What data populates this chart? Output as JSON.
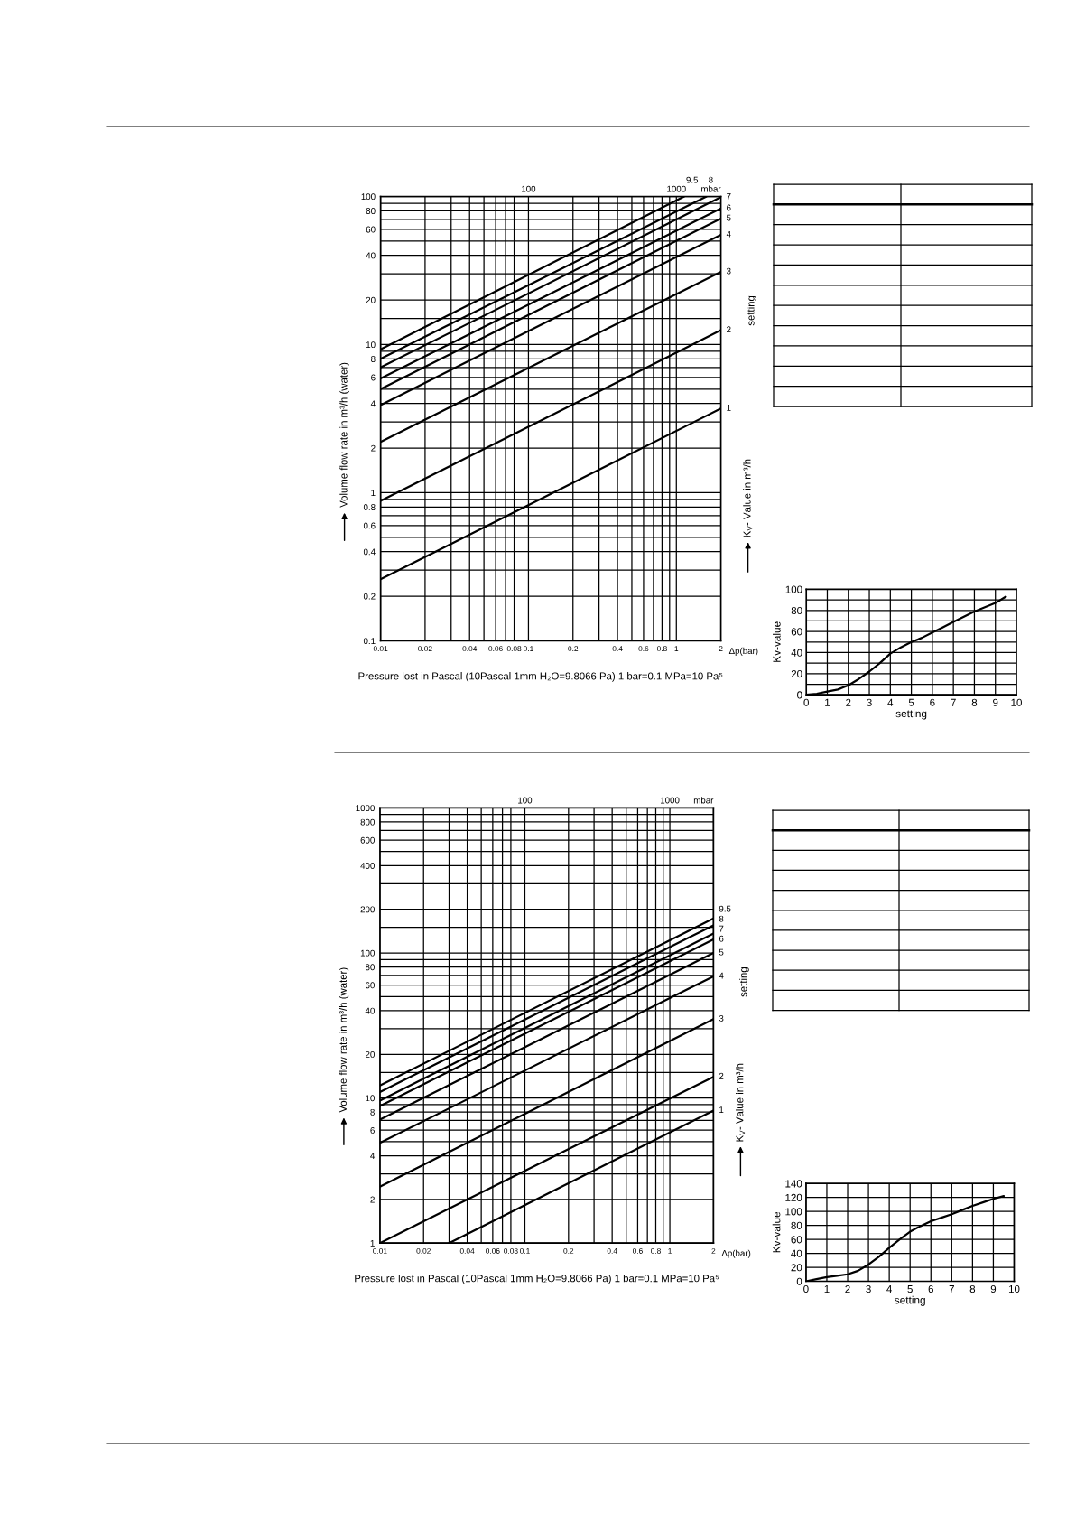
{
  "chart_data": [
    {
      "type": "line",
      "xlabel": "Pressure lost in Pascal (10Pascal 1mm H₂O=9.8066 Pa) 1 bar=0.1 MPa=10 Pa⁵",
      "ylabel": "Volume flow rate in m³/h (water)",
      "annotations": [
        "Δp(bar)",
        "setting",
        "K$_{V}$- Value in m³/h",
        "100",
        "1000",
        "mbar"
      ],
      "log": "xy",
      "xlim": [
        0.01,
        2
      ],
      "ylim": [
        0.1,
        100
      ],
      "xticks": [
        0.01,
        0.02,
        {
          "value": 0.03,
          "label": null
        },
        0.04,
        {
          "value": 0.05,
          "label": null
        },
        0.06,
        {
          "value": 0.07,
          "label": null
        },
        0.08,
        0.1,
        0.2,
        {
          "value": 0.3,
          "label": null
        },
        0.4,
        {
          "value": 0.5,
          "label": null
        },
        0.6,
        {
          "value": 0.7,
          "label": null
        },
        0.8,
        {
          "value": 0.9,
          "label": null
        },
        1,
        2
      ],
      "yticks": [
        0.1,
        0.2,
        {
          "value": 0.3,
          "label": null
        },
        0.4,
        {
          "value": 0.5,
          "label": null
        },
        0.6,
        {
          "value": 0.7,
          "label": null
        },
        0.8,
        {
          "value": 0.9,
          "label": null
        },
        1,
        2,
        {
          "value": 3,
          "label": null
        },
        4,
        {
          "value": 5,
          "label": null
        },
        6,
        {
          "value": 7,
          "label": null
        },
        8,
        {
          "value": 9,
          "label": null
        },
        10,
        {
          "value": 15,
          "label": null
        },
        20,
        {
          "value": 30,
          "label": null
        },
        40,
        {
          "value": 50,
          "label": null
        },
        60,
        {
          "value": 70,
          "label": null
        },
        80,
        {
          "value": 90,
          "label": null
        },
        100
      ],
      "grid": true,
      "series": [
        {
          "name": "9.5",
          "color": "#000000",
          "x": [
            0.01,
            1.13
          ],
          "values": [
            9.3,
            100
          ]
        },
        {
          "name": "8",
          "color": "#000000",
          "x": [
            0.01,
            1.6
          ],
          "values": [
            8.0,
            100
          ]
        },
        {
          "name": "7",
          "color": "#000000",
          "x": [
            0.01,
            2
          ],
          "values": [
            7.0,
            99
          ]
        },
        {
          "name": "6",
          "color": "#000000",
          "x": [
            0.01,
            2
          ],
          "values": [
            5.9,
            83
          ]
        },
        {
          "name": "5",
          "color": "#000000",
          "x": [
            0.01,
            2
          ],
          "values": [
            5.0,
            71
          ]
        },
        {
          "name": "4",
          "color": "#000000",
          "x": [
            0.01,
            2
          ],
          "values": [
            3.9,
            55
          ]
        },
        {
          "name": "3",
          "color": "#000000",
          "x": [
            0.01,
            2
          ],
          "values": [
            2.2,
            31
          ]
        },
        {
          "name": "2",
          "color": "#000000",
          "x": [
            0.01,
            2
          ],
          "values": [
            0.88,
            12.5
          ]
        },
        {
          "name": "1",
          "color": "#000000",
          "x": [
            0.01,
            2
          ],
          "values": [
            0.26,
            3.7
          ]
        }
      ]
    },
    {
      "type": "line",
      "xlabel": "setting",
      "ylabel": "Kv-value",
      "xlim": [
        0,
        10
      ],
      "ylim": [
        0,
        100
      ],
      "xticks": [
        0,
        1,
        2,
        3,
        4,
        5,
        6,
        7,
        8,
        9,
        10
      ],
      "yticks": [
        0,
        {
          "value": 10,
          "label": null
        },
        20,
        {
          "value": 30,
          "label": null
        },
        40,
        {
          "value": 50,
          "label": null
        },
        60,
        {
          "value": 70,
          "label": null
        },
        80,
        {
          "value": 90,
          "label": null
        },
        100
      ],
      "grid": true,
      "series": [
        {
          "color": "#000000",
          "x": [
            0,
            0.5,
            1,
            1.5,
            2,
            2.5,
            3,
            3.5,
            4,
            4.5,
            5,
            5.5,
            6,
            6.5,
            7,
            7.5,
            8,
            8.5,
            9,
            9.5
          ],
          "values": [
            0,
            1,
            3,
            5,
            9,
            15,
            22,
            30,
            39,
            45,
            50,
            54,
            59,
            64,
            69,
            74,
            79,
            83,
            87,
            93
          ]
        }
      ]
    },
    {
      "type": "line",
      "xlabel": "Pressure lost in Pascal (10Pascal 1mm H₂O=9.8066 Pa) 1 bar=0.1 MPa=10 Pa⁵",
      "ylabel": "Volume flow rate in m³/h (water)",
      "annotations": [
        "Δp(bar)",
        "setting",
        "K$_{V}$- Value in m³/h",
        "100",
        "1000",
        "mbar"
      ],
      "log": "xy",
      "xlim": [
        0.01,
        2
      ],
      "ylim": [
        1,
        1000
      ],
      "xticks": [
        0.01,
        0.02,
        {
          "value": 0.03,
          "label": null
        },
        0.04,
        {
          "value": 0.05,
          "label": null
        },
        0.06,
        {
          "value": 0.07,
          "label": null
        },
        0.08,
        0.1,
        0.2,
        {
          "value": 0.3,
          "label": null
        },
        0.4,
        {
          "value": 0.5,
          "label": null
        },
        0.6,
        {
          "value": 0.7,
          "label": null
        },
        0.8,
        {
          "value": 0.9,
          "label": null
        },
        1,
        2
      ],
      "yticks": [
        1,
        2,
        {
          "value": 3,
          "label": null
        },
        4,
        {
          "value": 5,
          "label": null
        },
        6,
        {
          "value": 7,
          "label": null
        },
        8,
        {
          "value": 9,
          "label": null
        },
        10,
        {
          "value": 15,
          "label": null
        },
        20,
        {
          "value": 30,
          "label": null
        },
        40,
        {
          "value": 50,
          "label": null
        },
        60,
        {
          "value": 70,
          "label": null
        },
        80,
        {
          "value": 90,
          "label": null
        },
        100,
        {
          "value": 150,
          "label": null
        },
        200,
        {
          "value": 300,
          "label": null
        },
        400,
        {
          "value": 500,
          "label": null
        },
        600,
        {
          "value": 700,
          "label": null
        },
        800,
        {
          "value": 900,
          "label": null
        },
        1000
      ],
      "grid": true,
      "series": [
        {
          "name": "9.5",
          "color": "#000000",
          "x": [
            0.01,
            2
          ],
          "values": [
            12.2,
            173
          ]
        },
        {
          "name": "8",
          "color": "#000000",
          "x": [
            0.01,
            2
          ],
          "values": [
            11.0,
            155
          ]
        },
        {
          "name": "7",
          "color": "#000000",
          "x": [
            0.01,
            2
          ],
          "values": [
            9.6,
            136
          ]
        },
        {
          "name": "6",
          "color": "#000000",
          "x": [
            0.01,
            2
          ],
          "values": [
            8.8,
            124
          ]
        },
        {
          "name": "5",
          "color": "#000000",
          "x": [
            0.01,
            2
          ],
          "values": [
            7.1,
            100
          ]
        },
        {
          "name": "4",
          "color": "#000000",
          "x": [
            0.01,
            2
          ],
          "values": [
            4.9,
            69
          ]
        },
        {
          "name": "3",
          "color": "#000000",
          "x": [
            0.01,
            2
          ],
          "values": [
            2.45,
            35
          ]
        },
        {
          "name": "2",
          "color": "#000000",
          "x": [
            0.01,
            2
          ],
          "values": [
            1.0,
            14
          ]
        },
        {
          "name": "1",
          "color": "#000000",
          "x": [
            0.03,
            2
          ],
          "values": [
            1.0,
            8.2
          ]
        }
      ]
    },
    {
      "type": "line",
      "xlabel": "setting",
      "ylabel": "Kv-value",
      "xlim": [
        0,
        10
      ],
      "ylim": [
        0,
        140
      ],
      "xticks": [
        0,
        1,
        2,
        3,
        4,
        5,
        6,
        7,
        8,
        9,
        10
      ],
      "yticks": [
        0,
        20,
        40,
        60,
        80,
        100,
        120,
        140
      ],
      "grid": true,
      "series": [
        {
          "color": "#000000",
          "x": [
            0,
            0.5,
            1,
            1.5,
            2,
            2.5,
            3,
            3.5,
            4,
            4.5,
            5,
            5.5,
            6,
            6.5,
            7,
            7.5,
            8,
            8.5,
            9,
            9.5
          ],
          "values": [
            0,
            3,
            6,
            8,
            10,
            15,
            24,
            35,
            48,
            60,
            71,
            79,
            86,
            91,
            96,
            102,
            108,
            113,
            118,
            122
          ]
        }
      ]
    }
  ]
}
